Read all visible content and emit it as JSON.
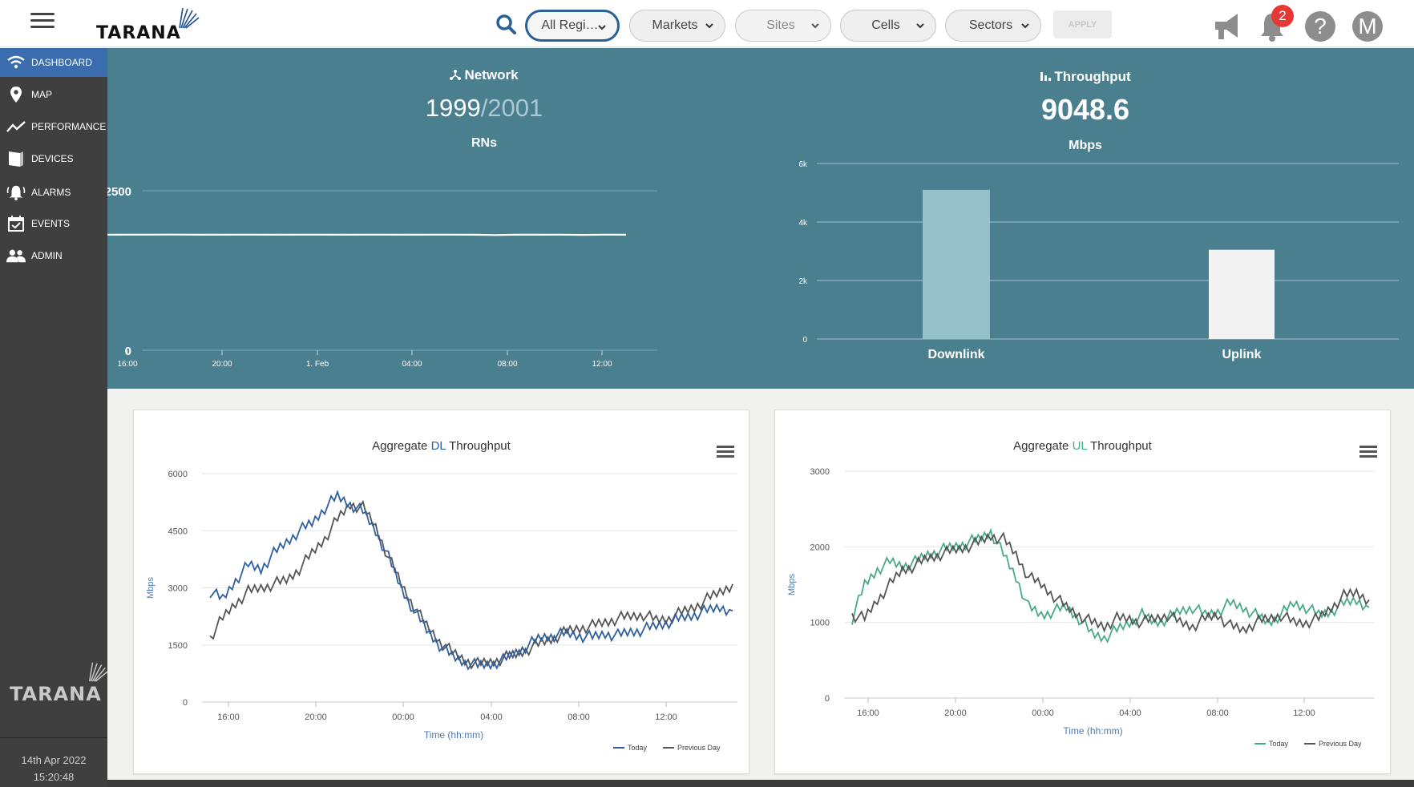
{
  "topbar": {
    "filters": [
      {
        "label": "All Regi…",
        "state": "active"
      },
      {
        "label": "Markets",
        "state": "normal"
      },
      {
        "label": "Sites",
        "state": "disabled"
      },
      {
        "label": "Cells",
        "state": "normal"
      },
      {
        "label": "Sectors",
        "state": "normal"
      }
    ],
    "apply_label": "APPLY",
    "notification_count": "2",
    "help_label": "?",
    "avatar_initial": "M"
  },
  "branding": {
    "logo_text": "TARANA"
  },
  "sidebar": {
    "items": [
      {
        "label": "DASHBOARD",
        "icon": "wifi-icon",
        "active": true
      },
      {
        "label": "MAP",
        "icon": "map-pin-icon"
      },
      {
        "label": "PERFORMANCE",
        "icon": "trend-line-icon"
      },
      {
        "label": "DEVICES",
        "icon": "device-icon"
      },
      {
        "label": "ALARMS",
        "icon": "alarm-bell-icon"
      },
      {
        "label": "EVENTS",
        "icon": "calendar-check-icon"
      },
      {
        "label": "ADMIN",
        "icon": "users-icon"
      }
    ],
    "date": "14th Apr 2022",
    "time": "15:20:48"
  },
  "network": {
    "heading": "Network",
    "value": "1999",
    "total": "/2001",
    "unit": "RNs"
  },
  "throughput": {
    "heading": "Throughput",
    "value": "9048.6",
    "unit": "Mbps"
  },
  "colors": {
    "accent": "#3a6cae",
    "panel": "#4a7f8f",
    "dl_series": "#2f5f9e",
    "ul_series": "#48aa88",
    "previous_day": "#555555",
    "badge": "#e53935"
  },
  "chart_data": [
    {
      "type": "line",
      "title": "",
      "ylim": [
        0,
        2500
      ],
      "y_ticks": [
        "2500",
        "0"
      ],
      "x_ticks": [
        "16:00",
        "20:00",
        "1. Feb",
        "04:00",
        "08:00",
        "12:00"
      ],
      "series": [
        {
          "values": [
            1810,
            1812,
            1810,
            1812,
            1811,
            1813,
            1812,
            1810,
            1811,
            1812,
            1810,
            1812,
            1811,
            1810,
            1812,
            1811,
            1810,
            1811,
            1812,
            1810,
            1805,
            1811,
            1810,
            1812,
            1808,
            1811,
            1810
          ]
        }
      ]
    },
    {
      "type": "bar",
      "title": "",
      "categories": [
        "Downlink",
        "Uplink"
      ],
      "values": [
        5100,
        3050
      ],
      "ylim": [
        0,
        6000
      ],
      "y_ticks": [
        "0",
        "2k",
        "4k",
        "6k"
      ]
    },
    {
      "type": "line",
      "title_parts": [
        "Aggregate ",
        "DL",
        " Throughput"
      ],
      "ylabel": "Mbps",
      "xlabel": "Time (hh:mm)",
      "ylim": [
        0,
        6000
      ],
      "y_ticks": [
        "0",
        "1500",
        "3000",
        "4500",
        "6000"
      ],
      "x_ticks": [
        "16:00",
        "20:00",
        "00:00",
        "04:00",
        "08:00",
        "12:00"
      ],
      "series": [
        {
          "name": "Today",
          "values": [
            2900,
            2700,
            3200,
            3600,
            3500,
            3900,
            4200,
            4500,
            4700,
            5100,
            5400,
            5200,
            5000,
            4500,
            3800,
            3000,
            2400,
            1900,
            1500,
            1200,
            1050,
            950,
            1000,
            1100,
            1300,
            1500,
            1700,
            1750,
            1800,
            1750,
            1700,
            1800,
            1750,
            1850,
            1900,
            2000,
            2100,
            2200,
            2300,
            2400,
            2500,
            2400
          ]
        },
        {
          "name": "Previous Day",
          "values": [
            1700,
            2200,
            2600,
            2900,
            3000,
            3100,
            3200,
            3500,
            3900,
            4300,
            4800,
            5200,
            5100,
            4600,
            3800,
            3100,
            2500,
            2000,
            1600,
            1300,
            1100,
            1000,
            1050,
            1150,
            1250,
            1400,
            1550,
            1700,
            1850,
            1950,
            2000,
            2100,
            2200,
            2250,
            2300,
            2150,
            2200,
            2350,
            2500,
            2700,
            2900,
            3100
          ]
        }
      ]
    },
    {
      "type": "line",
      "title_parts": [
        "Aggregate ",
        "UL",
        " Throughput"
      ],
      "ylabel": "Mbps",
      "xlabel": "Time (hh:mm)",
      "ylim": [
        0,
        3000
      ],
      "y_ticks": [
        "0",
        "1000",
        "2000",
        "3000"
      ],
      "x_ticks": [
        "16:00",
        "20:00",
        "00:00",
        "04:00",
        "08:00",
        "12:00"
      ],
      "series": [
        {
          "name": "Today",
          "values": [
            1050,
            1500,
            1700,
            1800,
            1750,
            1800,
            1900,
            1950,
            2000,
            2050,
            2100,
            2200,
            1900,
            1600,
            1200,
            1100,
            1150,
            1200,
            1050,
            850,
            800,
            900,
            1000,
            1100,
            1000,
            1050,
            1150,
            1200,
            1100,
            1150,
            1250,
            1200,
            1100,
            1000,
            1100,
            1250,
            1200,
            1100,
            1150,
            1250,
            1300,
            1200
          ]
        },
        {
          "name": "Previous Day",
          "values": [
            1100,
            1050,
            1300,
            1500,
            1700,
            1750,
            1850,
            1900,
            1950,
            2000,
            2050,
            2150,
            2100,
            1900,
            1600,
            1500,
            1350,
            1200,
            1100,
            1000,
            950,
            1050,
            1050,
            1000,
            1050,
            1100,
            1000,
            950,
            1050,
            1100,
            950,
            900,
            1000,
            1050,
            1100,
            1000,
            1000,
            1050,
            1200,
            1350,
            1400,
            1300
          ]
        }
      ]
    }
  ]
}
